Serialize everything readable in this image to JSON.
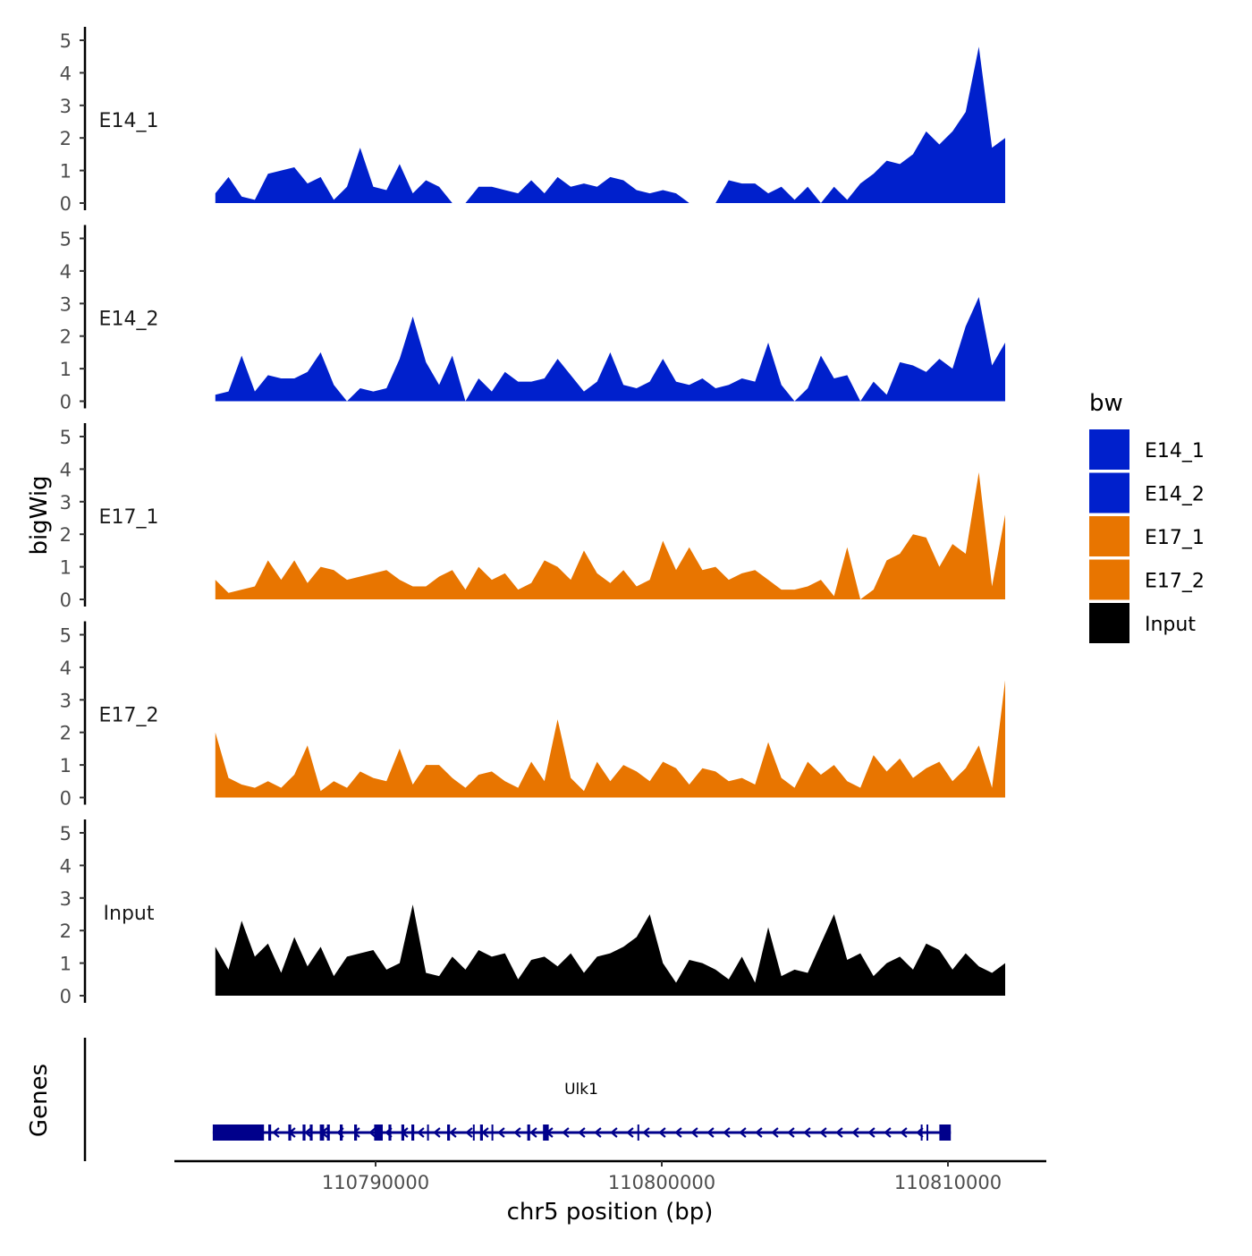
{
  "chart_data": {
    "type": "area",
    "title": "",
    "ylabel": "bigWig",
    "xlabel": "chr5 position (bp)",
    "gene_track_label": "Genes",
    "ylim": [
      0,
      5.2
    ],
    "yticks": [
      0,
      1,
      2,
      3,
      4,
      5
    ],
    "xlim": [
      110781700,
      110813400
    ],
    "xticks": [
      110790000,
      110800000,
      110810000
    ],
    "xtick_labels": [
      "110790000",
      "110800000",
      "110810000"
    ],
    "x": {
      "start": 110784400,
      "step": 460
    },
    "legend": {
      "title": "bw",
      "position": "right",
      "entries": [
        {
          "name": "E14_1",
          "color": "#0020CC"
        },
        {
          "name": "E14_2",
          "color": "#0020CC"
        },
        {
          "name": "E17_1",
          "color": "#E87500"
        },
        {
          "name": "E17_2",
          "color": "#E87500"
        },
        {
          "name": "Input",
          "color": "#000000"
        }
      ]
    },
    "series": [
      {
        "name": "E14_1",
        "color": "#0020CC",
        "values": [
          0.3,
          0.8,
          0.2,
          0.1,
          0.9,
          1.0,
          1.1,
          0.6,
          0.8,
          0.1,
          0.5,
          1.7,
          0.5,
          0.4,
          1.2,
          0.3,
          0.7,
          0.5,
          0,
          0,
          0.5,
          0.5,
          0.4,
          0.3,
          0.7,
          0.3,
          0.8,
          0.5,
          0.6,
          0.5,
          0.8,
          0.7,
          0.4,
          0.3,
          0.4,
          0.3,
          0,
          0,
          0,
          0.7,
          0.6,
          0.6,
          0.3,
          0.5,
          0.1,
          0.5,
          0,
          0.5,
          0.1,
          0.6,
          0.9,
          1.3,
          1.2,
          1.5,
          2.2,
          1.8,
          2.2,
          2.8,
          4.8,
          1.7,
          2.0
        ]
      },
      {
        "name": "E14_2",
        "color": "#0020CC",
        "values": [
          0.2,
          0.3,
          1.4,
          0.3,
          0.8,
          0.7,
          0.7,
          0.9,
          1.5,
          0.5,
          0,
          0.4,
          0.3,
          0.4,
          1.3,
          2.6,
          1.2,
          0.5,
          1.4,
          0,
          0.7,
          0.3,
          0.9,
          0.6,
          0.6,
          0.7,
          1.3,
          0.8,
          0.3,
          0.6,
          1.5,
          0.5,
          0.4,
          0.6,
          1.3,
          0.6,
          0.5,
          0.7,
          0.4,
          0.5,
          0.7,
          0.6,
          1.8,
          0.5,
          0,
          0.4,
          1.4,
          0.7,
          0.8,
          0,
          0.6,
          0.2,
          1.2,
          1.1,
          0.9,
          1.3,
          1.0,
          2.3,
          3.2,
          1.1,
          1.8
        ]
      },
      {
        "name": "E17_1",
        "color": "#E87500",
        "values": [
          0.6,
          0.2,
          0.3,
          0.4,
          1.2,
          0.6,
          1.2,
          0.5,
          1.0,
          0.9,
          0.6,
          0.7,
          0.8,
          0.9,
          0.6,
          0.4,
          0.4,
          0.7,
          0.9,
          0.3,
          1.0,
          0.6,
          0.8,
          0.3,
          0.5,
          1.2,
          1.0,
          0.6,
          1.5,
          0.8,
          0.5,
          0.9,
          0.4,
          0.6,
          1.8,
          0.9,
          1.6,
          0.9,
          1.0,
          0.6,
          0.8,
          0.9,
          0.6,
          0.3,
          0.3,
          0.4,
          0.6,
          0.1,
          1.6,
          0,
          0.3,
          1.2,
          1.4,
          2.0,
          1.9,
          1.0,
          1.7,
          1.4,
          3.9,
          0.4,
          2.6
        ]
      },
      {
        "name": "E17_2",
        "color": "#E87500",
        "values": [
          2.0,
          0.6,
          0.4,
          0.3,
          0.5,
          0.3,
          0.7,
          1.6,
          0.2,
          0.5,
          0.3,
          0.8,
          0.6,
          0.5,
          1.5,
          0.4,
          1.0,
          1.0,
          0.6,
          0.3,
          0.7,
          0.8,
          0.5,
          0.3,
          1.1,
          0.5,
          2.4,
          0.6,
          0.2,
          1.1,
          0.5,
          1.0,
          0.8,
          0.5,
          1.1,
          0.9,
          0.4,
          0.9,
          0.8,
          0.5,
          0.6,
          0.4,
          1.7,
          0.6,
          0.3,
          1.1,
          0.7,
          1.0,
          0.5,
          0.3,
          1.3,
          0.8,
          1.2,
          0.6,
          0.9,
          1.1,
          0.5,
          0.9,
          1.6,
          0.3,
          3.6
        ]
      },
      {
        "name": "Input",
        "color": "#000000",
        "values": [
          1.5,
          0.8,
          2.3,
          1.2,
          1.6,
          0.7,
          1.8,
          0.9,
          1.5,
          0.6,
          1.2,
          1.3,
          1.4,
          0.8,
          1.0,
          2.8,
          0.7,
          0.6,
          1.2,
          0.8,
          1.4,
          1.2,
          1.3,
          0.5,
          1.1,
          1.2,
          0.9,
          1.3,
          0.7,
          1.2,
          1.3,
          1.5,
          1.8,
          2.5,
          1.0,
          0.4,
          1.1,
          1.0,
          0.8,
          0.5,
          1.2,
          0.4,
          2.1,
          0.6,
          0.8,
          0.7,
          1.6,
          2.5,
          1.1,
          1.3,
          0.6,
          1.0,
          1.2,
          0.8,
          1.6,
          1.4,
          0.8,
          1.3,
          0.9,
          0.7,
          1.0
        ]
      }
    ],
    "gene": {
      "name": "Ulk1",
      "color": "#00008B",
      "strand": "-",
      "start": 110784310,
      "end": 110810100,
      "exons": [
        [
          110784310,
          110786100
        ],
        [
          110786250,
          110786350
        ],
        [
          110786950,
          110787050
        ],
        [
          110787450,
          110787550
        ],
        [
          110787700,
          110787800
        ],
        [
          110788050,
          110788200
        ],
        [
          110788300,
          110788400
        ],
        [
          110788750,
          110788850
        ],
        [
          110789250,
          110789350
        ],
        [
          110789950,
          110790250
        ],
        [
          110790450,
          110790550
        ],
        [
          110790900,
          110791000
        ],
        [
          110791250,
          110791350
        ],
        [
          110791800,
          110791850
        ],
        [
          110792500,
          110792600
        ],
        [
          110793400,
          110793450
        ],
        [
          110793650,
          110793750
        ],
        [
          110794050,
          110794100
        ],
        [
          110795300,
          110795400
        ],
        [
          110795850,
          110796050
        ],
        [
          110799150,
          110799180
        ],
        [
          110809050,
          110809100
        ],
        [
          110809250,
          110809300
        ],
        [
          110809700,
          110810100
        ]
      ]
    }
  }
}
